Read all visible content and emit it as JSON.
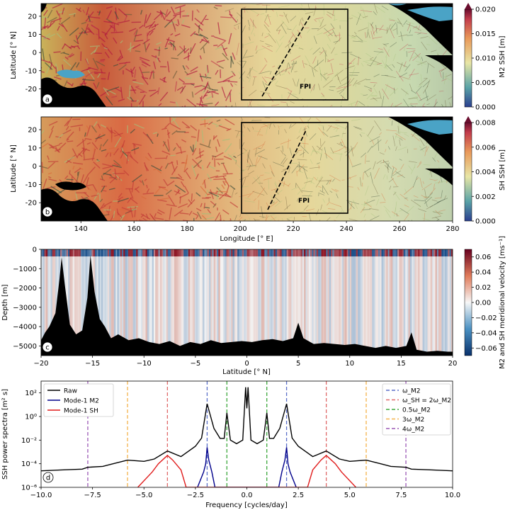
{
  "colors": {
    "map_deep": "#6f9fa8",
    "map_mid": "#e9e3a8",
    "map_warm": "#e0884a",
    "map_hot": "#b41f4c",
    "land": "#000000",
    "shelf": "#4aa3c6",
    "vel_pos": "#8b0f1f",
    "vel_neg": "#1a4f8a",
    "raw": "#000000",
    "mode1_m2": "#00008b",
    "mode1_sh": "#e01c1c",
    "omega_m2": "#5a6fc9",
    "omega_sh": "#e06a6a",
    "half_m2": "#3da83d",
    "three_m2": "#f5b24a",
    "four_m2": "#9b59b6"
  },
  "chart_data": [
    {
      "type": "heatmap",
      "panel": "a",
      "ylabel": "Latitude [$^\\circ$ N]",
      "yticks": [
        20,
        10,
        0,
        -10,
        -20
      ],
      "xlim": [
        125,
        280
      ],
      "ylim": [
        -30,
        27
      ],
      "box": {
        "lon": [
          200,
          240
        ],
        "lat": [
          -25,
          25
        ]
      },
      "transect": {
        "lon": [
          208,
          226
        ],
        "lat": [
          -22,
          24
        ]
      },
      "annotation": "FPI",
      "colorbar": {
        "label": "M2 SSH [m]",
        "ticks": [
          "0.000",
          "0.005",
          "0.010",
          "0.015",
          "0.020"
        ],
        "min": 0,
        "max": 0.02
      }
    },
    {
      "type": "heatmap",
      "panel": "b",
      "ylabel": "Latitude [$^\\circ$ N]",
      "xlabel": "Longitude [$^\\circ$ E]",
      "yticks": [
        20,
        10,
        0,
        -10,
        -20
      ],
      "xticks": [
        140,
        160,
        180,
        200,
        220,
        240,
        260,
        280
      ],
      "xlim": [
        125,
        280
      ],
      "ylim": [
        -30,
        27
      ],
      "box": {
        "lon": [
          200,
          240
        ],
        "lat": [
          -25,
          25
        ]
      },
      "transect": {
        "lon": [
          208,
          226
        ],
        "lat": [
          -22,
          22
        ]
      },
      "annotation": "FPI",
      "colorbar": {
        "label": "SH SSH [m]",
        "ticks": [
          "0.000",
          "0.002",
          "0.004",
          "0.006",
          "0.008"
        ],
        "min": 0,
        "max": 0.008
      }
    },
    {
      "type": "heatmap",
      "panel": "c",
      "xlabel": "Latitude [$^\\circ$ N]",
      "ylabel": "Depth [m]",
      "xticks": [
        -20,
        -15,
        -10,
        -5,
        0,
        5,
        10,
        15,
        20
      ],
      "yticks": [
        0,
        -1000,
        -2000,
        -3000,
        -4000,
        -5000
      ],
      "xlim": [
        -20,
        20
      ],
      "ylim": [
        -5500,
        0
      ],
      "bathymetry": [
        [
          -20,
          -4700
        ],
        [
          -19.6,
          -4300
        ],
        [
          -19.2,
          -4000
        ],
        [
          -18.6,
          -3300
        ],
        [
          -18.2,
          -1500
        ],
        [
          -18.0,
          -400
        ],
        [
          -17.7,
          -1800
        ],
        [
          -17.2,
          -3900
        ],
        [
          -16.6,
          -4400
        ],
        [
          -16.0,
          -4200
        ],
        [
          -15.5,
          -2500
        ],
        [
          -15.2,
          -300
        ],
        [
          -14.8,
          -2200
        ],
        [
          -14.3,
          -3600
        ],
        [
          -13.8,
          -4000
        ],
        [
          -13.2,
          -4600
        ],
        [
          -12.5,
          -4400
        ],
        [
          -11.5,
          -4700
        ],
        [
          -10.5,
          -4600
        ],
        [
          -9.5,
          -4800
        ],
        [
          -8.5,
          -4900
        ],
        [
          -7.5,
          -4750
        ],
        [
          -6.5,
          -5000
        ],
        [
          -5.5,
          -4800
        ],
        [
          -4.5,
          -4900
        ],
        [
          -3.5,
          -4700
        ],
        [
          -2.5,
          -4850
        ],
        [
          -1.5,
          -4800
        ],
        [
          -0.5,
          -4750
        ],
        [
          0.5,
          -4800
        ],
        [
          1.5,
          -4700
        ],
        [
          2.5,
          -4650
        ],
        [
          3.5,
          -4750
        ],
        [
          4.5,
          -4600
        ],
        [
          5.0,
          -3800
        ],
        [
          5.5,
          -4600
        ],
        [
          6.5,
          -4900
        ],
        [
          7.5,
          -4850
        ],
        [
          8.5,
          -4900
        ],
        [
          9.5,
          -4950
        ],
        [
          10.5,
          -4900
        ],
        [
          11.5,
          -5000
        ],
        [
          12.5,
          -5100
        ],
        [
          13.5,
          -5000
        ],
        [
          14.5,
          -5100
        ],
        [
          15.5,
          -5000
        ],
        [
          16.0,
          -4300
        ],
        [
          16.5,
          -5200
        ],
        [
          17.5,
          -5300
        ],
        [
          18.5,
          -5250
        ],
        [
          19.5,
          -5300
        ],
        [
          20,
          -5300
        ]
      ],
      "colorbar": {
        "label": "M2 and SH meridional velocity [ms$^{-1}$]",
        "ticks": [
          "0.06",
          "0.04",
          "0.02",
          "0.00",
          "−0.02",
          "−0.04",
          "−0.06"
        ],
        "min": -0.07,
        "max": 0.07
      }
    },
    {
      "type": "line",
      "panel": "d",
      "xlabel": "Frequency [cycles/day]",
      "ylabel": "SSH power spectra [m$^2$ s]",
      "xlim": [
        -10,
        10
      ],
      "ylim": [
        1e-06,
        1000.0
      ],
      "yscale": "log",
      "xticks": [
        "−10.0",
        "−7.5",
        "−5.0",
        "−2.5",
        "0.0",
        "2.5",
        "5.0",
        "7.5",
        "10.0"
      ],
      "yticks": [
        "10$^{-6}$",
        "10$^{-4}$",
        "10$^{-2}$",
        "10$^{0}$",
        "10$^{2}$"
      ],
      "series": [
        {
          "name": "Raw",
          "x": [
            -10,
            -9,
            -8,
            -7.73,
            -7,
            -6.5,
            -5.8,
            -5,
            -4.5,
            -3.86,
            -3.2,
            -2.5,
            -2.2,
            -1.93,
            -1.6,
            -1.3,
            -1.1,
            -0.97,
            -0.8,
            -0.5,
            -0.2,
            -0.06,
            0,
            0.06,
            0.2,
            0.5,
            0.8,
            0.97,
            1.1,
            1.3,
            1.6,
            1.93,
            2.2,
            2.5,
            3.2,
            3.86,
            4.5,
            5,
            5.8,
            6.5,
            7,
            7.73,
            8,
            9,
            10
          ],
          "y": [
            2.5e-05,
            3e-05,
            3.5e-05,
            5e-05,
            6e-05,
            0.0001,
            0.0002,
            0.00016,
            0.00025,
            0.0012,
            0.0004,
            0.003,
            0.015,
            12.0,
            0.1,
            0.014,
            0.014,
            2.0,
            0.01,
            0.005,
            0.01,
            300.0,
            5.0,
            300.0,
            0.01,
            0.005,
            0.01,
            2.0,
            0.014,
            0.014,
            0.1,
            12.0,
            0.015,
            0.003,
            0.0004,
            0.0012,
            0.00025,
            0.00016,
            0.0002,
            0.0001,
            6e-05,
            5e-05,
            3.5e-05,
            3e-05,
            2.5e-05
          ]
        },
        {
          "name": "Mode-1 M2",
          "x": [
            -2.4,
            -2.1,
            -2.0,
            -1.93,
            -1.85,
            -1.7,
            -1.55,
            1.55,
            1.7,
            1.85,
            1.93,
            2.0,
            2.1,
            2.4
          ],
          "y": [
            1e-06,
            2e-05,
            0.0001,
            0.0025,
            0.0002,
            2e-05,
            1e-06,
            1e-06,
            2e-05,
            0.0002,
            0.0025,
            0.0001,
            2e-05,
            1e-06
          ]
        },
        {
          "name": "Mode-1 SH",
          "x": [
            -5.3,
            -4.6,
            -4.3,
            -4.0,
            -3.86,
            -3.6,
            -3.2,
            -2.95,
            2.95,
            3.2,
            3.6,
            3.86,
            4.0,
            4.3,
            4.6,
            5.3
          ],
          "y": [
            1e-06,
            2e-05,
            0.0001,
            0.0003,
            0.0005,
            0.0002,
            3e-05,
            1e-06,
            1e-06,
            3e-05,
            0.0002,
            0.0005,
            0.0003,
            0.0001,
            2e-05,
            1e-06
          ]
        }
      ],
      "vlines": [
        {
          "name": "$\\omega_{M2}$",
          "color_key": "omega_m2",
          "x": [
            -1.93,
            1.93
          ]
        },
        {
          "name": "$\\omega_{SH}=2\\omega_{M2}$",
          "color_key": "omega_sh",
          "x": [
            -3.86,
            3.86
          ]
        },
        {
          "name": "$0.5\\omega_{M2}$",
          "color_key": "half_m2",
          "x": [
            -0.97,
            0.97
          ]
        },
        {
          "name": "$3\\omega_{M2}$",
          "color_key": "three_m2",
          "x": [
            -5.8,
            5.8
          ]
        },
        {
          "name": "$4\\omega_{M2}$",
          "color_key": "four_m2",
          "x": [
            -7.73,
            7.73
          ]
        }
      ]
    }
  ]
}
